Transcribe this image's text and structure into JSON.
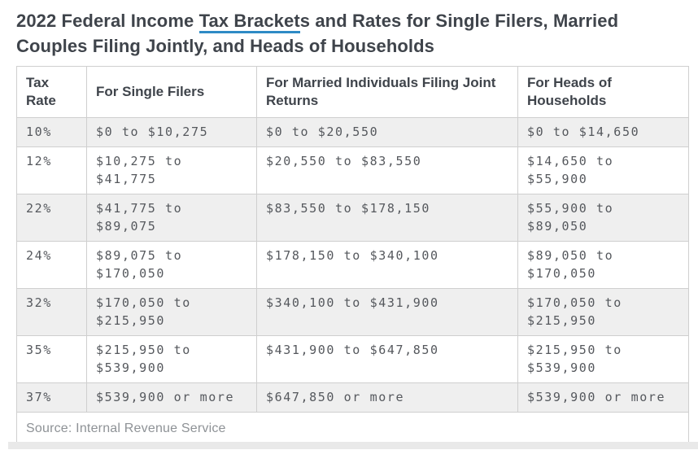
{
  "page": {
    "title": {
      "prefix": "2022 Federal Income ",
      "link_text": "Tax Bracket",
      "suffix": "s and Rates for Single Filers, Married Couples Filing Jointly, and Heads of Households"
    },
    "source_note": "Source: Internal Revenue Service"
  },
  "table": {
    "headers": [
      "Tax Rate",
      "For Single Filers",
      "For Married Individuals Filing Joint Returns",
      "For Heads of Households"
    ],
    "rows": [
      {
        "rate": "10%",
        "single_filers": "$0 to $10,275",
        "married_joint": "$0 to $20,550",
        "heads_of_household": "$0 to $14,650"
      },
      {
        "rate": "12%",
        "single_filers": "$10,275 to $41,775",
        "married_joint": "$20,550 to $83,550",
        "heads_of_household": "$14,650 to $55,900"
      },
      {
        "rate": "22%",
        "single_filers": "$41,775 to $89,075",
        "married_joint": "$83,550 to $178,150",
        "heads_of_household": "$55,900 to $89,050"
      },
      {
        "rate": "24%",
        "single_filers": "$89,075 to $170,050",
        "married_joint": "$178,150 to $340,100",
        "heads_of_household": "$89,050 to $170,050"
      },
      {
        "rate": "32%",
        "single_filers": "$170,050 to $215,950",
        "married_joint": "$340,100 to $431,900",
        "heads_of_household": "$170,050 to $215,950"
      },
      {
        "rate": "35%",
        "single_filers": "$215,950 to $539,900",
        "married_joint": "$431,900 to $647,850",
        "heads_of_household": "$215,950 to $539,900"
      },
      {
        "rate": "37%",
        "single_filers": "$539,900 or more",
        "married_joint": "$647,850 or more",
        "heads_of_household": "$539,900 or more"
      }
    ]
  },
  "colors": {
    "link_underline_blue": "#2e8bc5",
    "shaded_row_background": "#efefef",
    "table_border": "#cfcfcf",
    "heading_text": "#3f444b",
    "cell_text": "#55585d",
    "source_text": "#8e9296"
  }
}
